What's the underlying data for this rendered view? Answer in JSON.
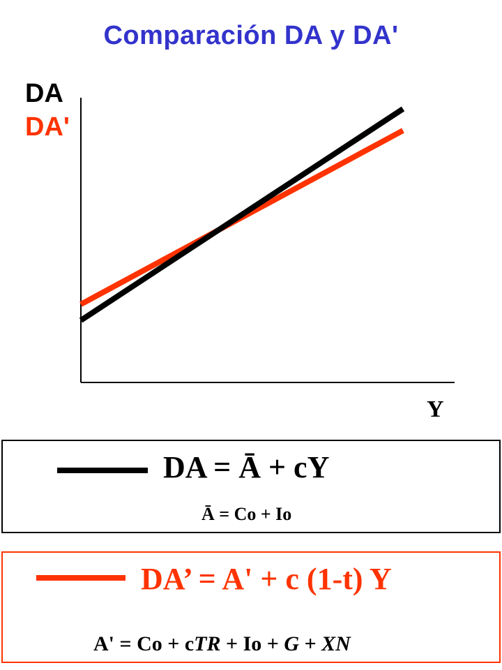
{
  "title": "Comparación DA y DA'",
  "axes": {
    "y_label_da": "DA",
    "y_label_dap": "DA'",
    "x_label": "Y"
  },
  "colors": {
    "title": "#3333cc",
    "da": "#000000",
    "dap": "#ff3300"
  },
  "lines": [
    {
      "name": "DA",
      "color": "#000000",
      "intercept_relative": "lower",
      "slope_relative": "steeper"
    },
    {
      "name": "DA'",
      "color": "#ff3300",
      "intercept_relative": "higher",
      "slope_relative": "flatter"
    }
  ],
  "box1": {
    "equation": "DA = Ā + cY",
    "definition": "Ā = Co + Io"
  },
  "box2": {
    "equation": "DA’ = A' + c (1-t) Y",
    "definition_parts": {
      "p1": "A' = Co + c",
      "p2": "TR",
      "p3": " + Io + ",
      "p4": "G",
      "p5": " + ",
      "p6": "XN"
    }
  }
}
